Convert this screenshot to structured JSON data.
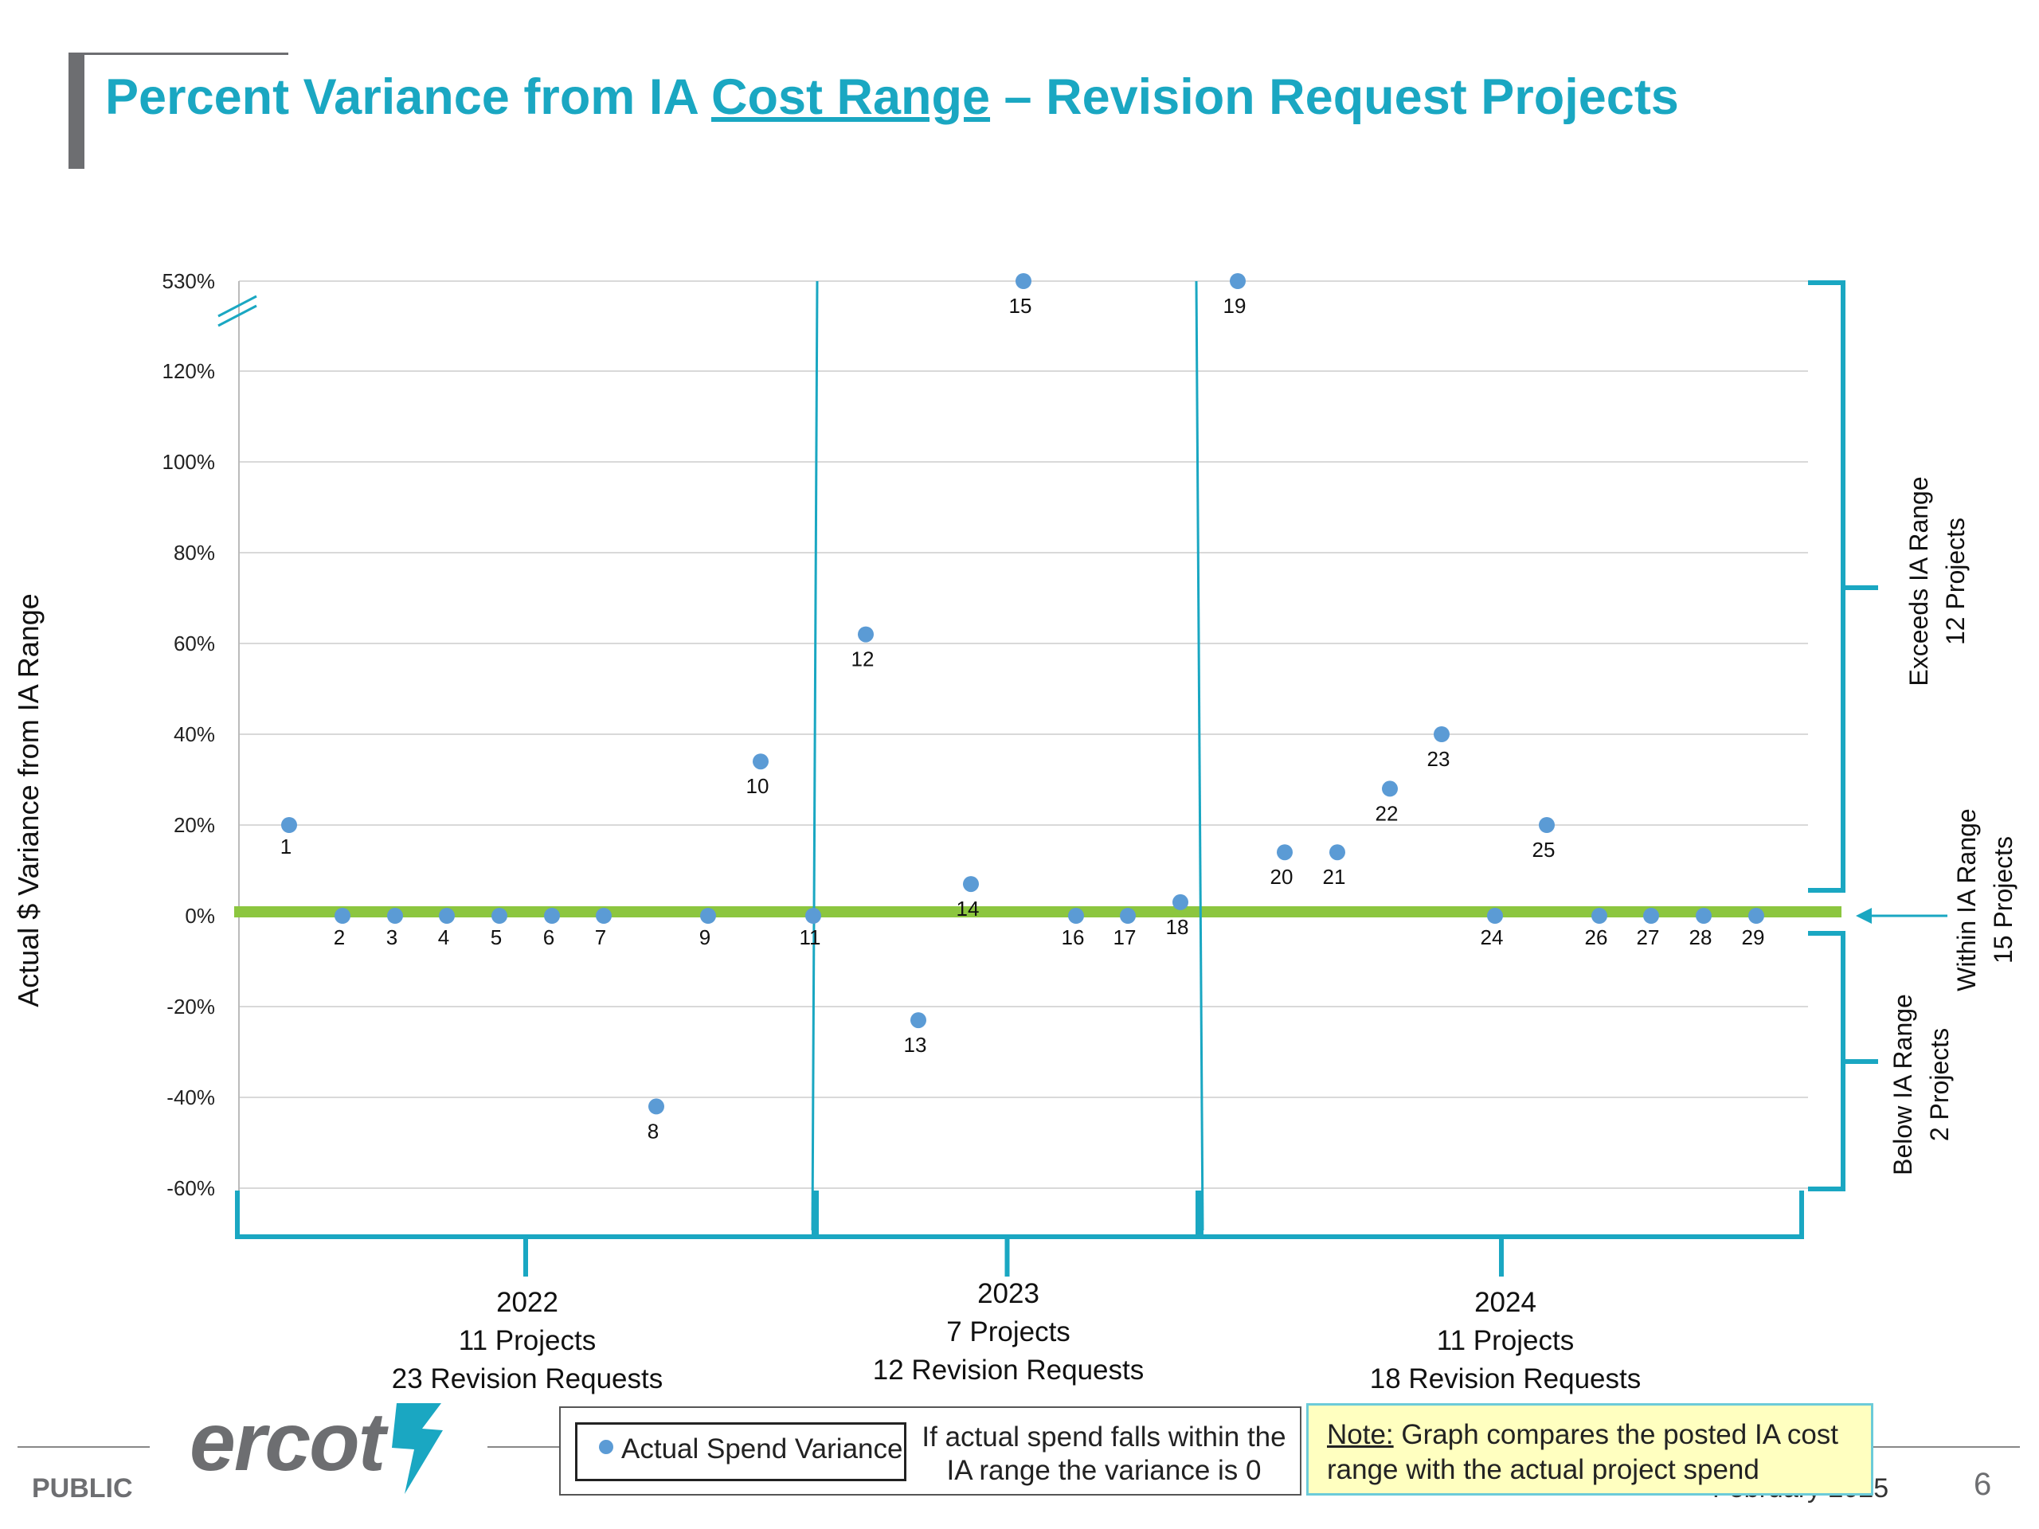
{
  "slide": {
    "title_pre": "Percent Variance from IA ",
    "title_underlined": "Cost Range",
    "title_post": " – Revision Request Projects",
    "footer_left": "PUBLIC",
    "logo_text": "ercot",
    "footer_date": "February 2025",
    "page_number": "6"
  },
  "legend": {
    "series_label": "Actual Spend Variance",
    "note_line1": "If actual spend falls within the",
    "note_line2": "IA range the variance is 0"
  },
  "note": {
    "label": "Note:",
    "text": " Graph compares the posted IA cost range with the actual project spend"
  },
  "colors": {
    "title": "#1aa7c2",
    "bracket": "#1aa7c2",
    "points": "#5b9bd5",
    "zero_band": "#8cc63f",
    "grid": "#d9d9d9"
  },
  "chart_data": {
    "type": "scatter",
    "ylabel": "Actual $ Variance from IA Range",
    "y_ticks": [
      "530%",
      "120%",
      "100%",
      "80%",
      "60%",
      "40%",
      "20%",
      "0%",
      "-20%",
      "-40%",
      "-60%"
    ],
    "y_axis_break": "between 120% and 530%",
    "ylim": [
      -60,
      530
    ],
    "grid": true,
    "series": [
      {
        "name": "Actual Spend Variance",
        "points": [
          {
            "label": "1",
            "y": 20
          },
          {
            "label": "2",
            "y": 0
          },
          {
            "label": "3",
            "y": 0
          },
          {
            "label": "4",
            "y": 0
          },
          {
            "label": "5",
            "y": 0
          },
          {
            "label": "6",
            "y": 0
          },
          {
            "label": "7",
            "y": 0
          },
          {
            "label": "8",
            "y": -42
          },
          {
            "label": "9",
            "y": 0
          },
          {
            "label": "10",
            "y": 34
          },
          {
            "label": "11",
            "y": 0
          },
          {
            "label": "12",
            "y": 62
          },
          {
            "label": "13",
            "y": -23
          },
          {
            "label": "14",
            "y": 7
          },
          {
            "label": "15",
            "y": 123
          },
          {
            "label": "16",
            "y": 0
          },
          {
            "label": "17",
            "y": 0
          },
          {
            "label": "18",
            "y": 3
          },
          {
            "label": "19",
            "y": 530
          },
          {
            "label": "20",
            "y": 14
          },
          {
            "label": "21",
            "y": 14
          },
          {
            "label": "22",
            "y": 28
          },
          {
            "label": "23",
            "y": 40
          },
          {
            "label": "24",
            "y": 0
          },
          {
            "label": "25",
            "y": 20
          },
          {
            "label": "26",
            "y": 0
          },
          {
            "label": "27",
            "y": 0
          },
          {
            "label": "28",
            "y": 0
          },
          {
            "label": "29",
            "y": 0
          }
        ]
      }
    ],
    "groups": [
      {
        "year": "2022",
        "projects": "11 Projects",
        "requests": "23 Revision Requests"
      },
      {
        "year": "2023",
        "projects": "7 Projects",
        "requests": "12 Revision Requests"
      },
      {
        "year": "2024",
        "projects": "11 Projects",
        "requests": "18 Revision Requests"
      }
    ],
    "ranges": [
      {
        "line1": "Exceeds IA Range",
        "line2": "12 Projects"
      },
      {
        "line1": "Within IA Range",
        "line2": "15 Projects"
      },
      {
        "line1": "Below IA Range",
        "line2": "2 Projects"
      }
    ]
  }
}
